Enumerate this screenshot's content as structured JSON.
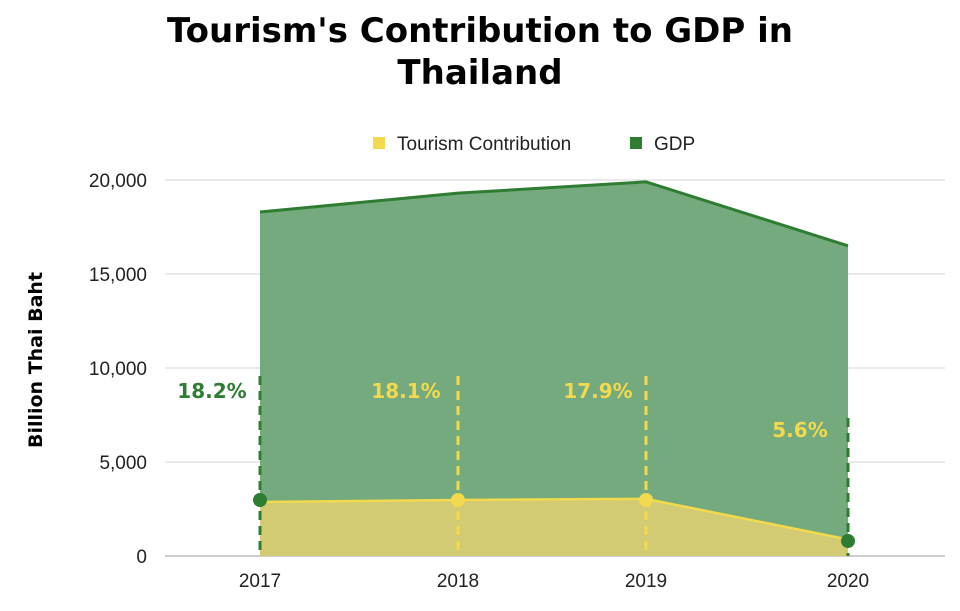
{
  "chart_data": {
    "type": "area",
    "title_lines": [
      "Tourism's Contribution to GDP in",
      "Thailand"
    ],
    "ylabel": "Billion Thai Baht",
    "xlabel": "",
    "categories": [
      "2017",
      "2018",
      "2019",
      "2020"
    ],
    "ylim": [
      0,
      20000
    ],
    "yticks": [
      0,
      5000,
      10000,
      15000,
      20000
    ],
    "ytick_labels": [
      "0",
      "5,000",
      "10,000",
      "15,000",
      "20,000"
    ],
    "series": [
      {
        "name": "Tourism Contribution",
        "values": [
          2870,
          2980,
          3040,
          880
        ],
        "color": "#f2d94e"
      },
      {
        "name": "GDP",
        "values": [
          18300,
          19300,
          19900,
          16500
        ],
        "color": "#2e7d32"
      }
    ],
    "annotations": [
      "18.2%",
      "18.1%",
      "17.9%",
      "5.6%"
    ],
    "legend_position": "top",
    "grid": true
  },
  "colors": {
    "gdp_fill": "#74aa7d",
    "gdp_line": "#2e7d32",
    "tourism_fill": "#d2cb73",
    "tourism_line": "#f2d94e",
    "pct_green": "#2e7d32",
    "pct_yellow": "#f2d94e"
  }
}
